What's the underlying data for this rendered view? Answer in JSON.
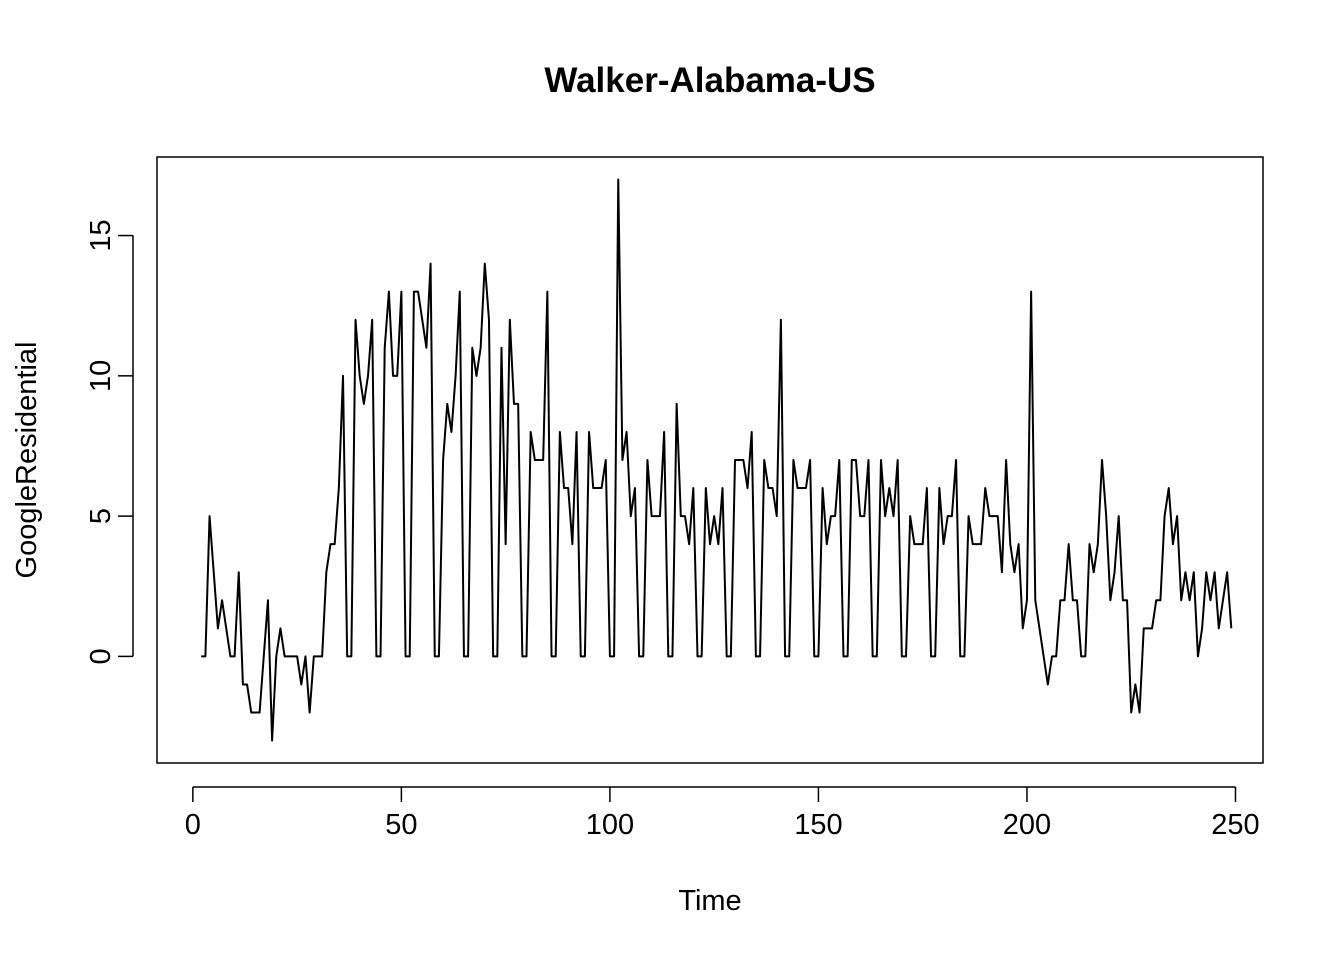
{
  "chart_data": {
    "type": "line",
    "title": "Walker-Alabama-US",
    "xlabel": "Time",
    "ylabel": "GoogleResidential",
    "xlim": [
      -8.6,
      256.6
    ],
    "ylim": [
      -3.8,
      17.8
    ],
    "xticks": [
      0,
      50,
      100,
      150,
      200,
      250
    ],
    "yticks": [
      0,
      5,
      10,
      15
    ],
    "grid": false,
    "legend": "none",
    "line_color": "#000000",
    "x_start": 2,
    "series": [
      {
        "values": [
          0,
          0,
          5,
          3,
          1,
          2,
          1,
          0,
          0,
          3,
          -1,
          -1,
          -2,
          -2,
          -2,
          0,
          2,
          -3,
          0,
          1,
          0,
          0,
          0,
          0,
          -1,
          0,
          -2,
          0,
          0,
          0,
          3,
          4,
          4,
          6,
          10,
          0,
          0,
          12,
          10,
          9,
          10,
          12,
          0,
          0,
          11,
          13,
          10,
          10,
          13,
          0,
          0,
          13,
          13,
          12,
          11,
          14,
          0,
          0,
          7,
          9,
          8,
          10,
          13,
          0,
          0,
          11,
          10,
          11,
          14,
          12,
          0,
          0,
          11,
          4,
          12,
          9,
          9,
          0,
          0,
          8,
          7,
          7,
          7,
          13,
          0,
          0,
          8,
          6,
          6,
          4,
          8,
          0,
          0,
          8,
          6,
          6,
          6,
          7,
          0,
          0,
          17,
          7,
          8,
          5,
          6,
          0,
          0,
          7,
          5,
          5,
          5,
          8,
          0,
          0,
          9,
          5,
          5,
          4,
          6,
          0,
          0,
          6,
          4,
          5,
          4,
          6,
          0,
          0,
          7,
          7,
          7,
          6,
          8,
          0,
          0,
          7,
          6,
          6,
          5,
          12,
          0,
          0,
          7,
          6,
          6,
          6,
          7,
          0,
          0,
          6,
          4,
          5,
          5,
          7,
          0,
          0,
          7,
          7,
          5,
          5,
          7,
          0,
          0,
          7,
          5,
          6,
          5,
          7,
          0,
          0,
          5,
          4,
          4,
          4,
          6,
          0,
          0,
          6,
          4,
          5,
          5,
          7,
          0,
          0,
          5,
          4,
          4,
          4,
          6,
          5,
          5,
          5,
          3,
          7,
          4,
          3,
          4,
          1,
          2,
          13,
          2,
          1,
          0,
          -1,
          0,
          0,
          2,
          2,
          4,
          2,
          2,
          0,
          0,
          4,
          3,
          4,
          7,
          5,
          2,
          3,
          5,
          2,
          2,
          -2,
          -1,
          -2,
          1,
          1,
          1,
          2,
          2,
          5,
          6,
          4,
          5,
          2,
          3,
          2,
          3,
          0,
          1,
          3,
          2,
          3,
          1,
          2,
          3,
          1
        ]
      }
    ]
  }
}
